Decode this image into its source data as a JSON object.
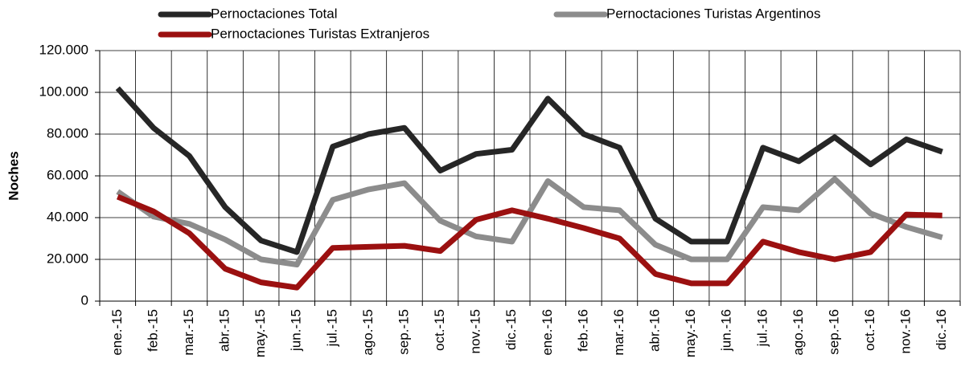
{
  "chart_data": {
    "type": "line",
    "y_label": "Noches",
    "categories": [
      "ene.-15",
      "feb.-15",
      "mar.-15",
      "abr.-15",
      "may.-15",
      "jun.-15",
      "jul.-15",
      "ago.-15",
      "sep.-15",
      "oct.-15",
      "nov.-15",
      "dic.-15",
      "ene.-16",
      "feb.-16",
      "mar.-16",
      "abr.-16",
      "may.-16",
      "jun.-16",
      "jul.-16",
      "ago.-16",
      "sep.-16",
      "oct.-16",
      "nov.-16",
      "dic.-16"
    ],
    "series": [
      {
        "name": "Pernoctaciones Total",
        "color": "#262626",
        "values": [
          102000,
          83000,
          69500,
          45000,
          29000,
          23500,
          74000,
          80000,
          83000,
          62500,
          70500,
          72500,
          97000,
          80000,
          73500,
          39500,
          28500,
          28500,
          73500,
          67000,
          78500,
          65500,
          77500,
          71500
        ]
      },
      {
        "name": "Pernoctaciones Turistas Argentinos",
        "color": "#8c8c8c",
        "values": [
          52500,
          40500,
          37000,
          29500,
          20000,
          17500,
          48500,
          53500,
          56500,
          38500,
          31000,
          28500,
          57500,
          45000,
          43500,
          27000,
          20000,
          20000,
          45000,
          43500,
          58500,
          42000,
          35500,
          30500
        ]
      },
      {
        "name": "Pernoctaciones Turistas Extranjeros",
        "color": "#9b1010",
        "values": [
          50000,
          43000,
          32500,
          15500,
          9000,
          6500,
          25500,
          26000,
          26500,
          24000,
          39000,
          43500,
          39500,
          35000,
          30000,
          13000,
          8500,
          8500,
          28500,
          23500,
          20000,
          23500,
          41500,
          41000
        ]
      }
    ],
    "ylim": [
      0,
      120000
    ],
    "yticks": [
      0,
      {
        "value": 20000,
        "label": "20.000"
      },
      {
        "value": 40000,
        "label": "40.000"
      },
      {
        "value": 60000,
        "label": "60.000"
      },
      {
        "value": 80000,
        "label": "80.000"
      },
      {
        "value": 100000,
        "label": "100.000"
      },
      {
        "value": 120000,
        "label": "120.000"
      }
    ],
    "grid": true,
    "legend": "top"
  }
}
